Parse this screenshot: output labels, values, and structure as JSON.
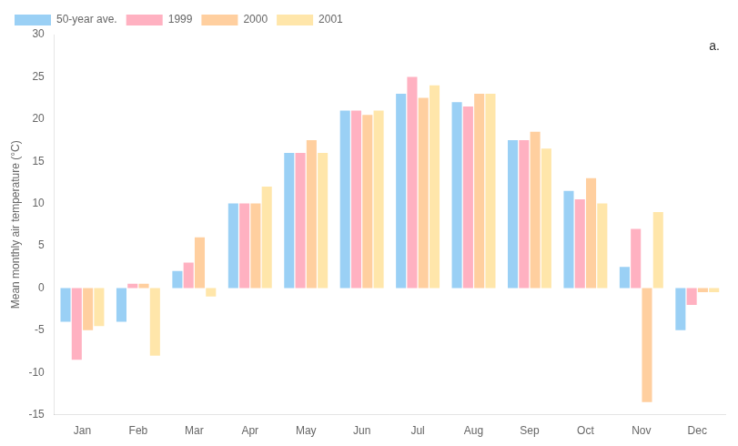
{
  "chart_data": {
    "type": "bar",
    "ylabel": "Mean monthly air temperature (°C)",
    "categories": [
      "Jan",
      "Feb",
      "Mar",
      "Apr",
      "May",
      "Jun",
      "Jul",
      "Aug",
      "Sep",
      "Oct",
      "Nov",
      "Dec"
    ],
    "series": [
      {
        "name": "50-year ave.",
        "values": [
          -4.0,
          -4.0,
          2.0,
          10.0,
          16.0,
          21.0,
          23.0,
          22.0,
          17.5,
          11.5,
          2.5,
          -5.0
        ]
      },
      {
        "name": "1999",
        "values": [
          -8.5,
          0.5,
          3.0,
          10.0,
          16.0,
          21.0,
          25.0,
          21.5,
          17.5,
          10.5,
          7.0,
          -2.0
        ]
      },
      {
        "name": "2000",
        "values": [
          -5.0,
          0.5,
          6.0,
          10.0,
          17.5,
          20.5,
          22.5,
          23.0,
          18.5,
          13.0,
          -13.5,
          -0.5
        ]
      },
      {
        "name": "2001",
        "values": [
          -4.5,
          -8.0,
          -1.0,
          12.0,
          16.0,
          21.0,
          24.0,
          23.0,
          16.5,
          10.0,
          9.0,
          -0.5
        ]
      }
    ],
    "ylim": [
      -15,
      30
    ],
    "yticks": [
      -15,
      -10,
      -5,
      0,
      5,
      10,
      15,
      20,
      25,
      30
    ],
    "grid": false,
    "legend": "upper left",
    "annotation": "a."
  }
}
